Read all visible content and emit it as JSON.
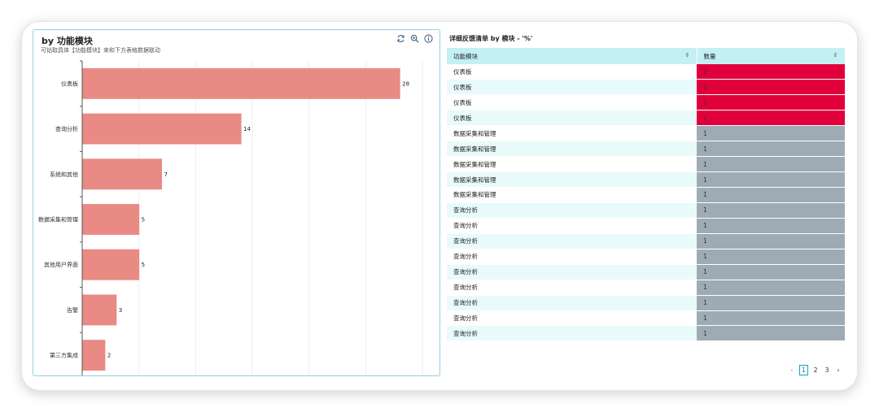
{
  "left_panel": {
    "title": "by 功能模块",
    "subtitle": "可钻取具体【功能模块】来和下方表格数据联动",
    "toolbar": {
      "refresh_icon": "refresh-icon",
      "zoom_icon": "zoom-in-icon",
      "info_icon": "info-icon"
    }
  },
  "chart_data": {
    "type": "bar",
    "orientation": "horizontal",
    "categories": [
      "仪表板",
      "查询分析",
      "系统和其他",
      "数据采集和管理",
      "其他用户界面",
      "告警",
      "第三方集成"
    ],
    "values": [
      28,
      14,
      7,
      5,
      5,
      3,
      2
    ],
    "xlim": [
      0,
      30
    ],
    "x_ticks": [
      0,
      5,
      10,
      15,
      20,
      25,
      30
    ],
    "bar_color": "#e98a84",
    "grid": true,
    "title": "",
    "xlabel": "",
    "ylabel": ""
  },
  "right_panel": {
    "title": "详细反馈清单 by 模块 - '%'",
    "columns": [
      "功能模块",
      "数量"
    ],
    "sort_glyph": "⇕",
    "rows": [
      {
        "module": "仪表板",
        "count": "2"
      },
      {
        "module": "仪表板",
        "count": "2"
      },
      {
        "module": "仪表板",
        "count": "2"
      },
      {
        "module": "仪表板",
        "count": "2"
      },
      {
        "module": "数据采集和管理",
        "count": "1"
      },
      {
        "module": "数据采集和管理",
        "count": "1"
      },
      {
        "module": "数据采集和管理",
        "count": "1"
      },
      {
        "module": "数据采集和管理",
        "count": "1"
      },
      {
        "module": "数据采集和管理",
        "count": "1"
      },
      {
        "module": "查询分析",
        "count": "1"
      },
      {
        "module": "查询分析",
        "count": "1"
      },
      {
        "module": "查询分析",
        "count": "1"
      },
      {
        "module": "查询分析",
        "count": "1"
      },
      {
        "module": "查询分析",
        "count": "1"
      },
      {
        "module": "查询分析",
        "count": "1"
      },
      {
        "module": "查询分析",
        "count": "1"
      },
      {
        "module": "查询分析",
        "count": "1"
      },
      {
        "module": "查询分析",
        "count": "1"
      }
    ],
    "pagination": {
      "prev": "‹",
      "next": "›",
      "pages": [
        "1",
        "2",
        "3"
      ],
      "current": "1"
    }
  },
  "colors": {
    "accent": "#8fd1dc",
    "header_bg": "#c3f0f3",
    "high": "#e2003c",
    "low": "#9eaab4"
  }
}
